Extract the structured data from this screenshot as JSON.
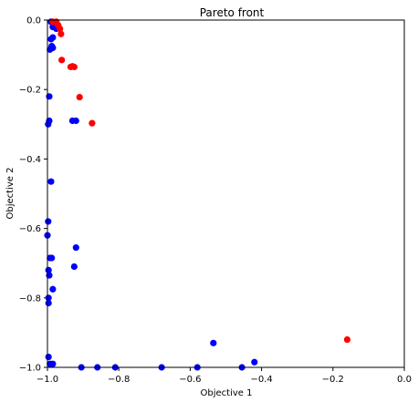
{
  "chart_data": {
    "type": "scatter",
    "title": "Pareto front",
    "xlabel": "Objective 1",
    "ylabel": "Objective 2",
    "xlim": [
      -1.0,
      0.0
    ],
    "ylim": [
      -1.0,
      0.0
    ],
    "xticks": [
      -1.0,
      -0.8,
      -0.6,
      -0.4,
      -0.2,
      0.0
    ],
    "xtick_labels": [
      "−1.0",
      "−0.8",
      "−0.6",
      "−0.4",
      "−0.2",
      "0.0"
    ],
    "yticks": [
      0.0,
      -0.2,
      -0.4,
      -0.6,
      -0.8,
      -1.0
    ],
    "ytick_labels": [
      "0.0",
      "−0.2",
      "−0.4",
      "−0.6",
      "−0.8",
      "−1.0"
    ],
    "grid": false,
    "series": [
      {
        "color": "#0000ff",
        "points": [
          [
            -0.99,
            -0.005
          ],
          [
            -0.985,
            -0.02
          ],
          [
            -0.975,
            -0.025
          ],
          [
            -0.985,
            -0.05
          ],
          [
            -0.99,
            -0.055
          ],
          [
            -0.988,
            -0.075
          ],
          [
            -0.993,
            -0.085
          ],
          [
            -0.985,
            -0.08
          ],
          [
            -0.995,
            -0.22
          ],
          [
            -0.995,
            -0.29
          ],
          [
            -0.998,
            -0.3
          ],
          [
            -0.93,
            -0.29
          ],
          [
            -0.92,
            -0.29
          ],
          [
            -0.99,
            -0.465
          ],
          [
            -0.998,
            -0.58
          ],
          [
            -1.0,
            -0.62
          ],
          [
            -0.92,
            -0.655
          ],
          [
            -0.993,
            -0.685
          ],
          [
            -0.988,
            -0.685
          ],
          [
            -0.925,
            -0.71
          ],
          [
            -0.997,
            -0.72
          ],
          [
            -0.995,
            -0.735
          ],
          [
            -0.985,
            -0.775
          ],
          [
            -0.997,
            -0.8
          ],
          [
            -0.997,
            -0.815
          ],
          [
            -0.535,
            -0.93
          ],
          [
            -0.42,
            -0.985
          ],
          [
            -0.997,
            -0.97
          ],
          [
            -0.993,
            -0.99
          ],
          [
            -0.985,
            -0.99
          ],
          [
            -0.905,
            -1.0
          ],
          [
            -0.86,
            -1.0
          ],
          [
            -0.81,
            -1.0
          ],
          [
            -0.68,
            -1.0
          ],
          [
            -0.58,
            -1.0
          ],
          [
            -0.455,
            -1.0
          ]
        ]
      },
      {
        "color": "#ff0000",
        "points": [
          [
            -0.985,
            -0.005
          ],
          [
            -0.975,
            -0.005
          ],
          [
            -0.97,
            -0.015
          ],
          [
            -0.965,
            -0.025
          ],
          [
            -0.962,
            -0.04
          ],
          [
            -0.96,
            -0.115
          ],
          [
            -0.935,
            -0.135
          ],
          [
            -0.93,
            -0.133
          ],
          [
            -0.925,
            -0.135
          ],
          [
            -0.91,
            -0.222
          ],
          [
            -0.875,
            -0.297
          ],
          [
            -0.16,
            -0.92
          ]
        ]
      }
    ]
  }
}
